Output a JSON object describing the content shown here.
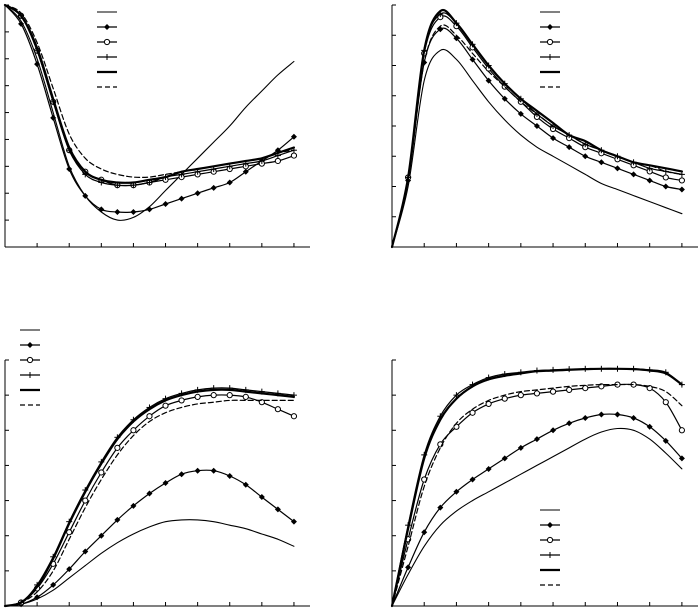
{
  "chart_data": [
    {
      "type": "line",
      "x": [
        0,
        1,
        2,
        3,
        4,
        5,
        6,
        7,
        8,
        9,
        10,
        11,
        12,
        13,
        14,
        15,
        16,
        17,
        18
      ],
      "xlim": [
        0,
        19
      ],
      "ylim": [
        0,
        9
      ],
      "grid": false,
      "legend_position": "top-center",
      "series": [
        {
          "style": "solid-thin",
          "values": [
            9.0,
            8.4,
            7.0,
            5.0,
            3.0,
            1.9,
            1.3,
            1.0,
            1.1,
            1.5,
            2.1,
            2.7,
            3.3,
            3.9,
            4.5,
            5.2,
            5.8,
            6.4,
            6.9
          ]
        },
        {
          "style": "diamond",
          "values": [
            9.0,
            8.3,
            6.8,
            4.8,
            2.9,
            1.9,
            1.4,
            1.3,
            1.3,
            1.4,
            1.6,
            1.8,
            2.0,
            2.2,
            2.4,
            2.8,
            3.2,
            3.6,
            4.1
          ]
        },
        {
          "style": "circle",
          "values": [
            9.0,
            8.6,
            7.3,
            5.4,
            3.6,
            2.8,
            2.5,
            2.3,
            2.3,
            2.4,
            2.5,
            2.6,
            2.7,
            2.8,
            2.9,
            3.0,
            3.1,
            3.2,
            3.4
          ]
        },
        {
          "style": "plus",
          "values": [
            9.0,
            8.6,
            7.3,
            5.4,
            3.6,
            2.7,
            2.4,
            2.3,
            2.3,
            2.4,
            2.6,
            2.7,
            2.8,
            2.9,
            3.0,
            3.1,
            3.2,
            3.4,
            3.6
          ]
        },
        {
          "style": "solid-thick",
          "values": [
            9.0,
            8.6,
            7.4,
            5.5,
            3.7,
            2.8,
            2.5,
            2.4,
            2.4,
            2.5,
            2.6,
            2.8,
            2.9,
            3.0,
            3.1,
            3.2,
            3.3,
            3.5,
            3.7
          ]
        },
        {
          "style": "dashed",
          "values": [
            9.0,
            8.7,
            7.6,
            5.9,
            4.2,
            3.3,
            2.9,
            2.7,
            2.6,
            2.6,
            2.7,
            2.8,
            2.9,
            3.0,
            3.1,
            3.2,
            3.3,
            3.5,
            3.6
          ]
        }
      ]
    },
    {
      "type": "line",
      "x": [
        0,
        1,
        2,
        3,
        4,
        5,
        6,
        7,
        8,
        9,
        10,
        11,
        12,
        13,
        14,
        15,
        16,
        17,
        18
      ],
      "xlim": [
        0,
        19
      ],
      "ylim": [
        0,
        8
      ],
      "grid": false,
      "legend_position": "top-right",
      "series": [
        {
          "style": "solid-thin",
          "values": [
            0.0,
            2.0,
            5.5,
            6.5,
            6.2,
            5.5,
            4.8,
            4.2,
            3.7,
            3.3,
            3.0,
            2.7,
            2.4,
            2.1,
            1.9,
            1.7,
            1.5,
            1.3,
            1.1
          ]
        },
        {
          "style": "diamond",
          "values": [
            0.0,
            2.2,
            6.1,
            7.2,
            6.9,
            6.2,
            5.5,
            4.9,
            4.4,
            4.0,
            3.6,
            3.3,
            3.0,
            2.8,
            2.6,
            2.4,
            2.2,
            2.0,
            1.9
          ]
        },
        {
          "style": "circle",
          "values": [
            0.0,
            2.3,
            6.4,
            7.6,
            7.3,
            6.6,
            5.9,
            5.3,
            4.8,
            4.3,
            3.9,
            3.6,
            3.3,
            3.1,
            2.9,
            2.7,
            2.5,
            2.3,
            2.2
          ]
        },
        {
          "style": "plus",
          "values": [
            0.0,
            2.3,
            6.5,
            7.7,
            7.4,
            6.7,
            6.0,
            5.4,
            4.9,
            4.4,
            4.0,
            3.7,
            3.4,
            3.2,
            3.0,
            2.8,
            2.6,
            2.5,
            2.4
          ]
        },
        {
          "style": "solid-thick",
          "values": [
            0.0,
            2.3,
            6.5,
            7.8,
            7.4,
            6.7,
            6.0,
            5.4,
            4.9,
            4.5,
            4.1,
            3.7,
            3.5,
            3.2,
            3.0,
            2.8,
            2.7,
            2.6,
            2.5
          ]
        },
        {
          "style": "dashed",
          "values": [
            0.0,
            2.2,
            6.1,
            7.3,
            7.0,
            6.4,
            5.8,
            5.3,
            4.8,
            4.4,
            4.0,
            3.7,
            3.4,
            3.2,
            3.0,
            2.8,
            2.7,
            2.5,
            2.4
          ]
        }
      ]
    },
    {
      "type": "line",
      "x": [
        0,
        1,
        2,
        3,
        4,
        5,
        6,
        7,
        8,
        9,
        10,
        11,
        12,
        13,
        14,
        15,
        16,
        17,
        18
      ],
      "xlim": [
        0,
        19
      ],
      "ylim": [
        0,
        7
      ],
      "grid": false,
      "legend_position": "top-left",
      "series": [
        {
          "style": "solid-thin",
          "values": [
            0.0,
            0.05,
            0.2,
            0.45,
            0.8,
            1.15,
            1.5,
            1.8,
            2.05,
            2.25,
            2.4,
            2.45,
            2.45,
            2.4,
            2.3,
            2.2,
            2.05,
            1.9,
            1.7
          ]
        },
        {
          "style": "diamond",
          "values": [
            0.0,
            0.05,
            0.25,
            0.6,
            1.05,
            1.55,
            2.0,
            2.45,
            2.85,
            3.2,
            3.5,
            3.75,
            3.85,
            3.85,
            3.7,
            3.45,
            3.1,
            2.75,
            2.4
          ]
        },
        {
          "style": "circle",
          "values": [
            0.0,
            0.1,
            0.5,
            1.2,
            2.1,
            3.0,
            3.8,
            4.5,
            5.0,
            5.4,
            5.7,
            5.85,
            5.95,
            6.0,
            6.0,
            5.95,
            5.8,
            5.6,
            5.4
          ]
        },
        {
          "style": "plus",
          "values": [
            0.0,
            0.1,
            0.6,
            1.4,
            2.4,
            3.3,
            4.1,
            4.8,
            5.3,
            5.65,
            5.9,
            6.05,
            6.15,
            6.2,
            6.2,
            6.15,
            6.1,
            6.05,
            6.0
          ]
        },
        {
          "style": "solid-thick",
          "values": [
            0.0,
            0.1,
            0.55,
            1.35,
            2.35,
            3.25,
            4.05,
            4.75,
            5.25,
            5.6,
            5.85,
            6.0,
            6.1,
            6.15,
            6.15,
            6.1,
            6.05,
            6.0,
            5.95
          ]
        },
        {
          "style": "dashed",
          "values": [
            0.0,
            0.1,
            0.4,
            1.0,
            1.9,
            2.8,
            3.6,
            4.3,
            4.85,
            5.25,
            5.5,
            5.65,
            5.75,
            5.8,
            5.85,
            5.85,
            5.85,
            5.85,
            5.85
          ]
        }
      ]
    },
    {
      "type": "line",
      "x": [
        0,
        1,
        2,
        3,
        4,
        5,
        6,
        7,
        8,
        9,
        10,
        11,
        12,
        13,
        14,
        15,
        16,
        17,
        18
      ],
      "xlim": [
        0,
        19
      ],
      "ylim": [
        0,
        7
      ],
      "grid": false,
      "legend_position": "bottom-right",
      "series": [
        {
          "style": "solid-thin",
          "values": [
            0.0,
            0.9,
            1.7,
            2.3,
            2.7,
            3.0,
            3.25,
            3.5,
            3.75,
            4.0,
            4.25,
            4.5,
            4.75,
            4.95,
            5.05,
            5.0,
            4.75,
            4.35,
            3.9
          ]
        },
        {
          "style": "diamond",
          "values": [
            0.0,
            1.1,
            2.1,
            2.8,
            3.25,
            3.6,
            3.9,
            4.2,
            4.5,
            4.75,
            5.0,
            5.2,
            5.35,
            5.45,
            5.45,
            5.35,
            5.1,
            4.7,
            4.2
          ]
        },
        {
          "style": "circle",
          "values": [
            0.0,
            1.9,
            3.6,
            4.6,
            5.1,
            5.5,
            5.75,
            5.9,
            6.0,
            6.05,
            6.1,
            6.15,
            6.2,
            6.25,
            6.3,
            6.3,
            6.2,
            5.8,
            5.0
          ]
        },
        {
          "style": "plus",
          "values": [
            0.0,
            2.3,
            4.3,
            5.4,
            6.0,
            6.3,
            6.5,
            6.6,
            6.65,
            6.7,
            6.72,
            6.74,
            6.75,
            6.75,
            6.75,
            6.75,
            6.72,
            6.65,
            6.3
          ]
        },
        {
          "style": "solid-thick",
          "values": [
            0.0,
            2.2,
            4.2,
            5.3,
            5.9,
            6.25,
            6.45,
            6.55,
            6.62,
            6.68,
            6.7,
            6.72,
            6.74,
            6.75,
            6.75,
            6.74,
            6.7,
            6.62,
            6.3
          ]
        },
        {
          "style": "dashed",
          "values": [
            0.0,
            1.7,
            3.4,
            4.5,
            5.2,
            5.6,
            5.85,
            6.0,
            6.1,
            6.15,
            6.2,
            6.25,
            6.28,
            6.3,
            6.3,
            6.3,
            6.25,
            6.1,
            5.7
          ]
        }
      ]
    }
  ]
}
